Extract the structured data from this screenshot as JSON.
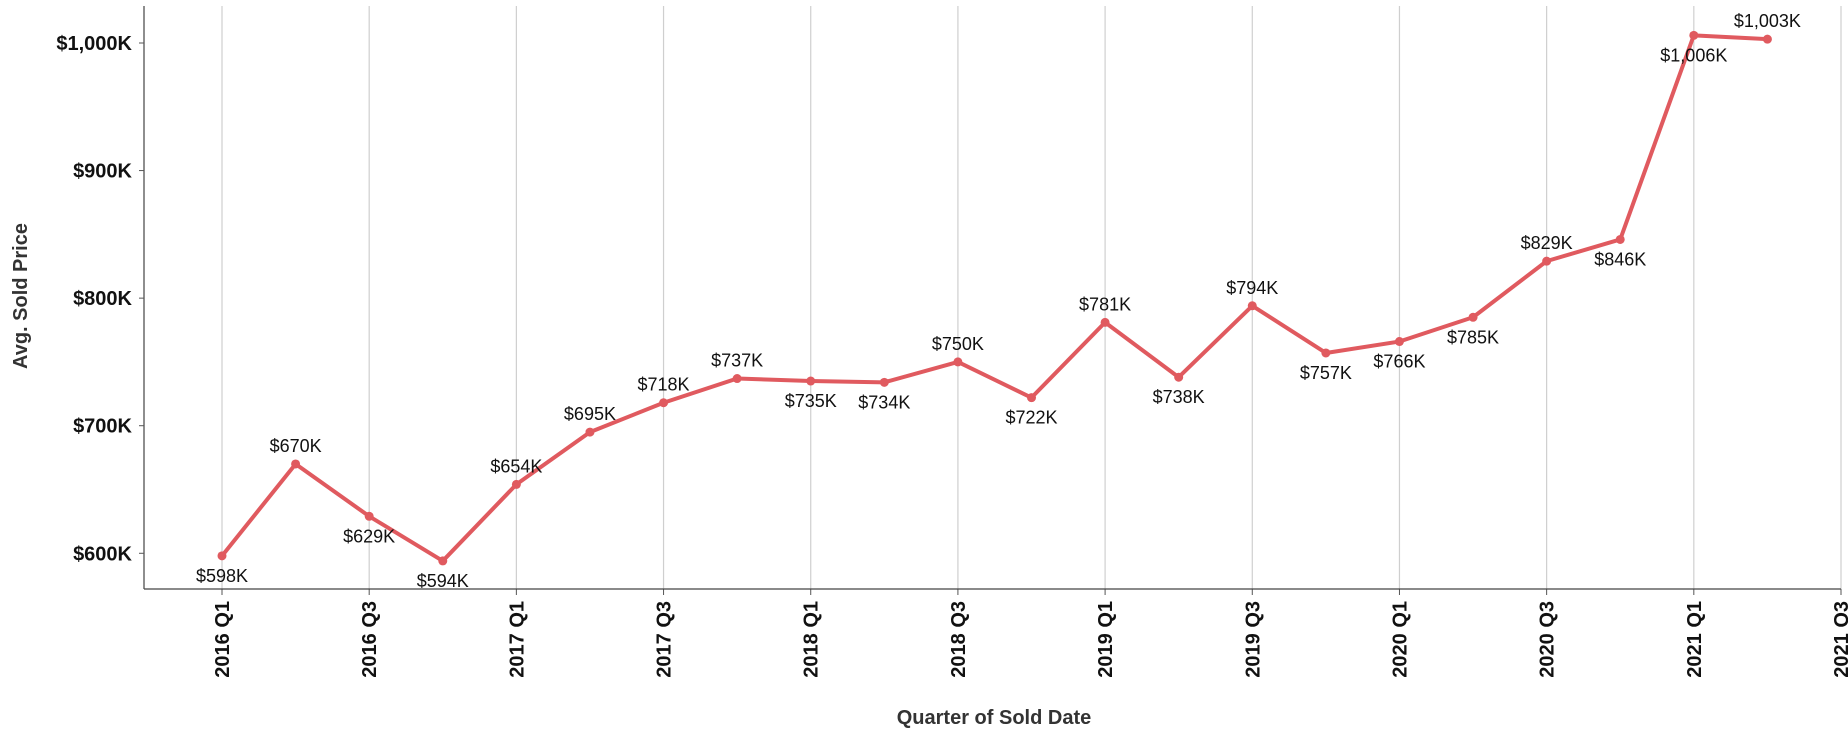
{
  "chart_data": {
    "type": "line",
    "x_label": "Quarter of Sold Date",
    "y_label": "Avg. Sold Price",
    "categories": [
      "2016 Q1",
      null,
      "2016 Q3",
      null,
      "2017 Q1",
      null,
      "2017 Q3",
      null,
      "2018 Q1",
      null,
      "2018 Q3",
      null,
      "2019 Q1",
      null,
      "2019 Q3",
      null,
      "2020 Q1",
      null,
      "2020 Q3",
      null,
      "2021 Q1",
      null,
      "2021 Q3"
    ],
    "series": [
      {
        "name": "Avg. Sold Price",
        "color": "#e05a5f",
        "values": [
          598,
          670,
          629,
          594,
          654,
          695,
          718,
          737,
          735,
          734,
          750,
          722,
          781,
          738,
          794,
          757,
          766,
          785,
          829,
          846,
          1006,
          1003,
          null
        ],
        "value_labels": [
          "$598K",
          "$670K",
          "$629K",
          "$594K",
          "$654K",
          "$695K",
          "$718K",
          "$737K",
          "$735K",
          "$734K",
          "$750K",
          "$722K",
          "$781K",
          "$738K",
          "$794K",
          "$757K",
          "$766K",
          "$785K",
          "$829K",
          "$846K",
          "$1,006K",
          "$1,003K",
          null
        ]
      }
    ],
    "ylim": [
      572,
      1029
    ],
    "yticks": [
      {
        "value": 600,
        "label": "$600K"
      },
      {
        "value": 700,
        "label": "$700K"
      },
      {
        "value": 800,
        "label": "$800K"
      },
      {
        "value": 900,
        "label": "$900K"
      },
      {
        "value": 1000,
        "label": "$1,000K"
      }
    ],
    "grid": "x"
  }
}
